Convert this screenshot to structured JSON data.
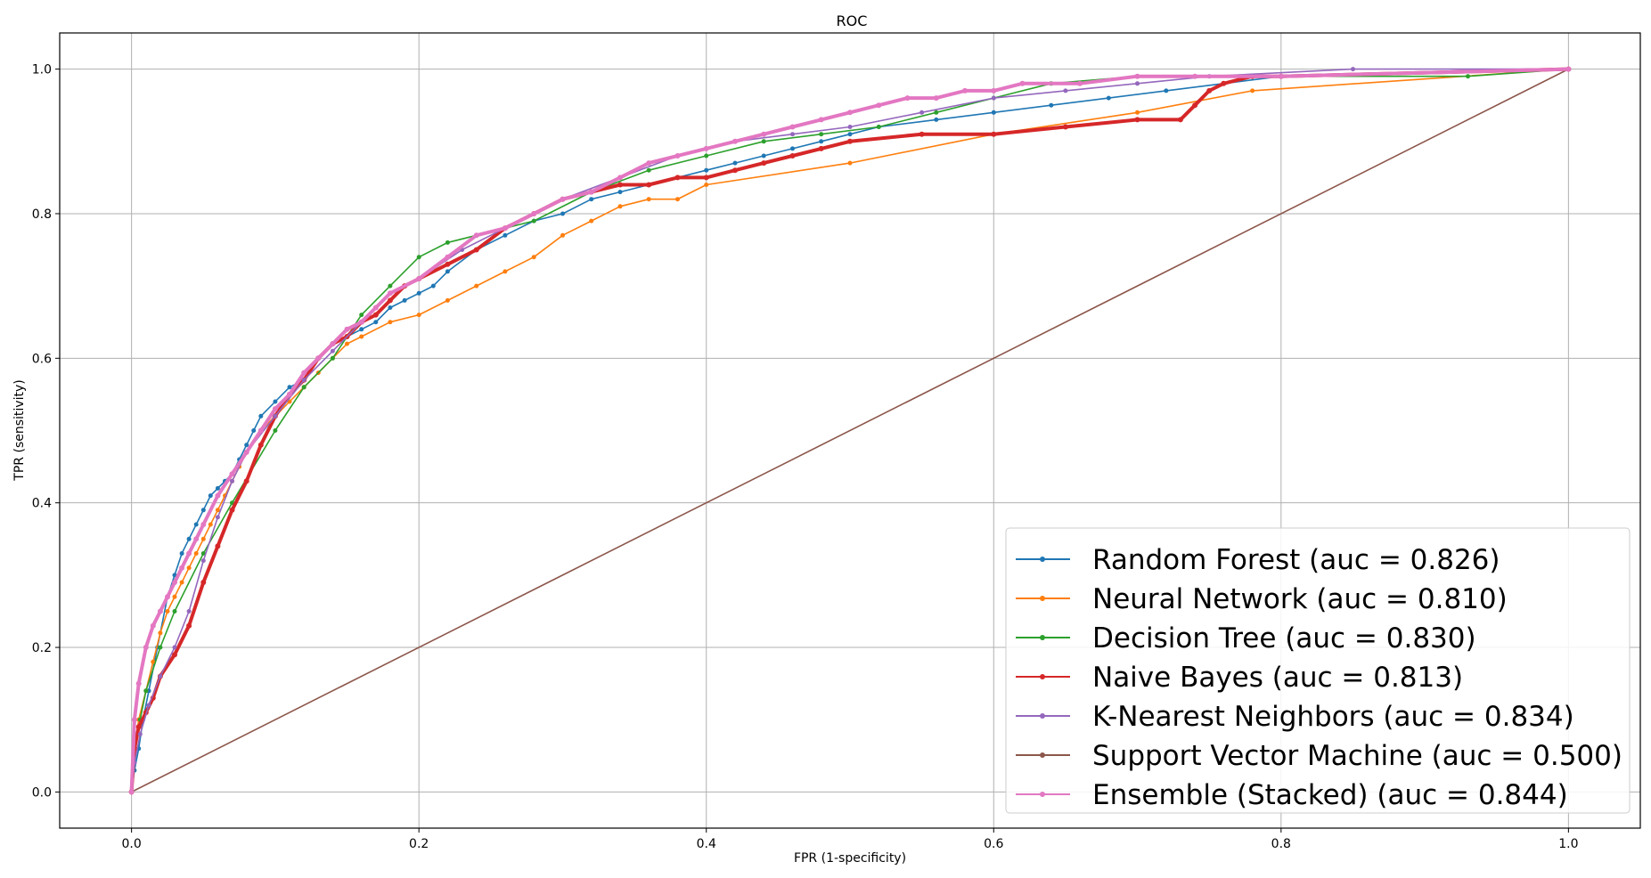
{
  "chart_data": {
    "type": "line",
    "title": "ROC",
    "xlabel": "FPR  (1-specificity)",
    "ylabel": "TPR  (sensitivity)",
    "xlim": [
      -0.05,
      1.05
    ],
    "ylim": [
      -0.05,
      1.05
    ],
    "xticks": [
      "0.0",
      "0.2",
      "0.4",
      "0.6",
      "0.8",
      "1.0"
    ],
    "yticks": [
      "0.0",
      "0.2",
      "0.4",
      "0.6",
      "0.8",
      "1.0"
    ],
    "grid": true,
    "legend_position": "lower-right",
    "series": [
      {
        "name": "Random Forest (auc = 0.826)",
        "color": "#1f77b4",
        "x": [
          0,
          0.002,
          0.005,
          0.008,
          0.012,
          0.018,
          0.025,
          0.03,
          0.035,
          0.04,
          0.045,
          0.05,
          0.055,
          0.06,
          0.065,
          0.07,
          0.075,
          0.08,
          0.085,
          0.09,
          0.1,
          0.11,
          0.12,
          0.13,
          0.14,
          0.15,
          0.16,
          0.17,
          0.18,
          0.19,
          0.2,
          0.21,
          0.22,
          0.24,
          0.26,
          0.28,
          0.3,
          0.32,
          0.34,
          0.36,
          0.4,
          0.42,
          0.44,
          0.46,
          0.48,
          0.5,
          0.52,
          0.56,
          0.6,
          0.64,
          0.68,
          0.72,
          0.76,
          0.8,
          1.0
        ],
        "y": [
          0,
          0.03,
          0.06,
          0.1,
          0.14,
          0.2,
          0.27,
          0.3,
          0.33,
          0.35,
          0.37,
          0.39,
          0.41,
          0.42,
          0.43,
          0.44,
          0.46,
          0.48,
          0.5,
          0.52,
          0.54,
          0.56,
          0.57,
          0.6,
          0.62,
          0.63,
          0.64,
          0.65,
          0.67,
          0.68,
          0.69,
          0.7,
          0.72,
          0.75,
          0.77,
          0.79,
          0.8,
          0.82,
          0.83,
          0.84,
          0.86,
          0.87,
          0.88,
          0.89,
          0.9,
          0.91,
          0.92,
          0.93,
          0.94,
          0.95,
          0.96,
          0.97,
          0.98,
          0.99,
          1.0
        ]
      },
      {
        "name": "Neural Network (auc = 0.810)",
        "color": "#ff7f0e",
        "x": [
          0,
          0.002,
          0.005,
          0.01,
          0.015,
          0.02,
          0.025,
          0.03,
          0.035,
          0.04,
          0.045,
          0.05,
          0.055,
          0.06,
          0.065,
          0.07,
          0.075,
          0.08,
          0.09,
          0.1,
          0.11,
          0.12,
          0.13,
          0.14,
          0.15,
          0.16,
          0.18,
          0.2,
          0.22,
          0.24,
          0.26,
          0.28,
          0.3,
          0.32,
          0.34,
          0.36,
          0.38,
          0.4,
          0.5,
          0.6,
          0.7,
          0.78,
          1.0
        ],
        "y": [
          0,
          0.06,
          0.1,
          0.14,
          0.18,
          0.22,
          0.25,
          0.27,
          0.29,
          0.31,
          0.33,
          0.35,
          0.37,
          0.39,
          0.41,
          0.43,
          0.45,
          0.47,
          0.5,
          0.52,
          0.54,
          0.56,
          0.58,
          0.6,
          0.62,
          0.63,
          0.65,
          0.66,
          0.68,
          0.7,
          0.72,
          0.74,
          0.77,
          0.79,
          0.81,
          0.82,
          0.82,
          0.84,
          0.87,
          0.91,
          0.94,
          0.97,
          1.0
        ]
      },
      {
        "name": "Decision Tree (auc = 0.830)",
        "color": "#2ca02c",
        "x": [
          0,
          0.002,
          0.006,
          0.01,
          0.02,
          0.03,
          0.05,
          0.07,
          0.1,
          0.12,
          0.14,
          0.16,
          0.18,
          0.2,
          0.22,
          0.24,
          0.28,
          0.32,
          0.36,
          0.4,
          0.44,
          0.48,
          0.52,
          0.56,
          0.6,
          0.64,
          0.7,
          0.8,
          0.93,
          1.0
        ],
        "y": [
          0,
          0.05,
          0.1,
          0.14,
          0.2,
          0.25,
          0.33,
          0.4,
          0.5,
          0.56,
          0.6,
          0.66,
          0.7,
          0.74,
          0.76,
          0.77,
          0.79,
          0.83,
          0.86,
          0.88,
          0.9,
          0.91,
          0.92,
          0.94,
          0.96,
          0.98,
          0.99,
          0.99,
          0.99,
          1.0
        ]
      },
      {
        "name": "Naive Bayes (auc = 0.813)",
        "color": "#d62728",
        "x": [
          0,
          0.002,
          0.005,
          0.01,
          0.015,
          0.02,
          0.03,
          0.04,
          0.05,
          0.06,
          0.07,
          0.08,
          0.09,
          0.1,
          0.11,
          0.12,
          0.13,
          0.14,
          0.15,
          0.16,
          0.17,
          0.18,
          0.19,
          0.2,
          0.22,
          0.24,
          0.26,
          0.28,
          0.3,
          0.32,
          0.34,
          0.36,
          0.38,
          0.4,
          0.42,
          0.44,
          0.46,
          0.48,
          0.5,
          0.55,
          0.6,
          0.65,
          0.7,
          0.73,
          0.74,
          0.75,
          0.76,
          0.78,
          0.8,
          1.0
        ],
        "y": [
          0,
          0.06,
          0.09,
          0.11,
          0.13,
          0.16,
          0.19,
          0.23,
          0.29,
          0.34,
          0.39,
          0.43,
          0.48,
          0.52,
          0.55,
          0.57,
          0.6,
          0.62,
          0.63,
          0.65,
          0.66,
          0.68,
          0.7,
          0.71,
          0.73,
          0.75,
          0.78,
          0.8,
          0.82,
          0.83,
          0.84,
          0.84,
          0.85,
          0.85,
          0.86,
          0.87,
          0.88,
          0.89,
          0.9,
          0.91,
          0.91,
          0.92,
          0.93,
          0.93,
          0.95,
          0.97,
          0.98,
          0.99,
          0.99,
          1.0
        ]
      },
      {
        "name": "K-Nearest Neighbors (auc = 0.834)",
        "color": "#9467bd",
        "x": [
          0,
          0.002,
          0.006,
          0.012,
          0.02,
          0.03,
          0.04,
          0.05,
          0.06,
          0.07,
          0.08,
          0.1,
          0.12,
          0.14,
          0.16,
          0.18,
          0.2,
          0.23,
          0.26,
          0.3,
          0.34,
          0.38,
          0.42,
          0.46,
          0.5,
          0.55,
          0.6,
          0.65,
          0.7,
          0.75,
          0.85,
          1.0
        ],
        "y": [
          0,
          0.04,
          0.08,
          0.12,
          0.16,
          0.2,
          0.25,
          0.32,
          0.38,
          0.43,
          0.47,
          0.52,
          0.57,
          0.61,
          0.65,
          0.69,
          0.71,
          0.75,
          0.78,
          0.82,
          0.85,
          0.88,
          0.9,
          0.91,
          0.92,
          0.94,
          0.96,
          0.97,
          0.98,
          0.99,
          1.0,
          1.0
        ]
      },
      {
        "name": "Support Vector Machine (auc = 0.500)",
        "color": "#8c564b",
        "x": [
          0,
          1.0
        ],
        "y": [
          0,
          1.0
        ]
      },
      {
        "name": "Ensemble (Stacked) (auc = 0.844)",
        "color": "#e377c2",
        "x": [
          0,
          0.002,
          0.005,
          0.01,
          0.015,
          0.02,
          0.025,
          0.03,
          0.035,
          0.04,
          0.045,
          0.05,
          0.06,
          0.07,
          0.08,
          0.09,
          0.1,
          0.11,
          0.12,
          0.13,
          0.14,
          0.15,
          0.16,
          0.17,
          0.18,
          0.2,
          0.22,
          0.24,
          0.26,
          0.28,
          0.3,
          0.32,
          0.34,
          0.36,
          0.38,
          0.4,
          0.42,
          0.44,
          0.46,
          0.48,
          0.5,
          0.52,
          0.54,
          0.56,
          0.58,
          0.6,
          0.62,
          0.66,
          0.7,
          0.74,
          0.8,
          1.0
        ],
        "y": [
          0,
          0.1,
          0.15,
          0.2,
          0.23,
          0.25,
          0.27,
          0.29,
          0.31,
          0.33,
          0.35,
          0.37,
          0.41,
          0.44,
          0.47,
          0.5,
          0.53,
          0.55,
          0.58,
          0.6,
          0.62,
          0.64,
          0.65,
          0.67,
          0.69,
          0.71,
          0.74,
          0.77,
          0.78,
          0.8,
          0.82,
          0.83,
          0.85,
          0.87,
          0.88,
          0.89,
          0.9,
          0.91,
          0.92,
          0.93,
          0.94,
          0.95,
          0.96,
          0.96,
          0.97,
          0.97,
          0.98,
          0.98,
          0.99,
          0.99,
          0.99,
          1.0
        ]
      }
    ]
  }
}
